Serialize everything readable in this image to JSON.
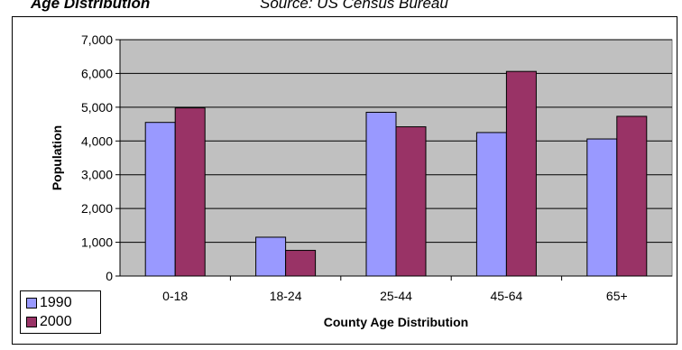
{
  "header": {
    "title": "Age Distribution",
    "source": "Source: US Census Bureau"
  },
  "chart_data": {
    "type": "bar",
    "categories": [
      "0-18",
      "18-24",
      "25-44",
      "45-64",
      "65+"
    ],
    "series": [
      {
        "name": "1990",
        "values": [
          4550,
          1150,
          4850,
          4250,
          4060
        ],
        "color": "#9999ff"
      },
      {
        "name": "2000",
        "values": [
          4980,
          760,
          4420,
          6060,
          4730
        ],
        "color": "#993366"
      }
    ],
    "xlabel": "County Age Distribution",
    "ylabel": "Population",
    "ylim": [
      0,
      7000
    ],
    "yticks": [
      0,
      1000,
      2000,
      3000,
      4000,
      5000,
      6000,
      7000
    ],
    "ytick_labels": [
      "0",
      "1,000",
      "2,000",
      "3,000",
      "4,000",
      "5,000",
      "6,000",
      "7,000"
    ],
    "grid": true,
    "plot_background": "#c0c0c0",
    "legend_position": "bottom-left"
  }
}
